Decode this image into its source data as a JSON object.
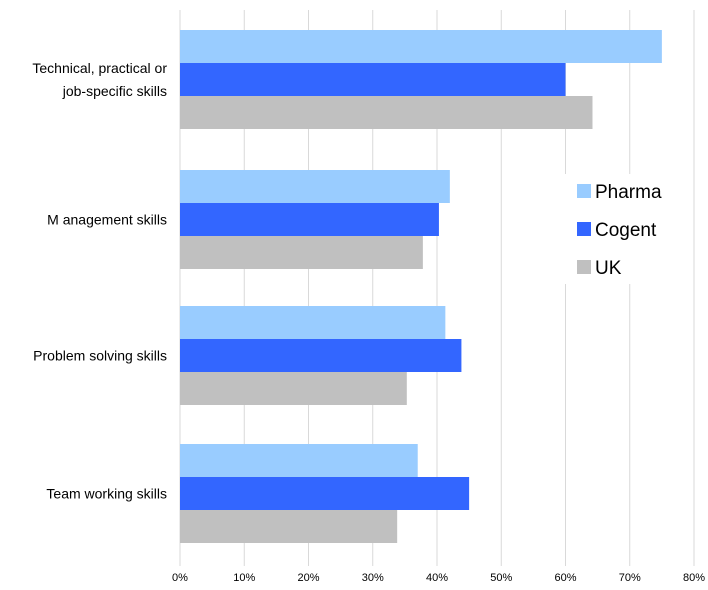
{
  "chart_data": {
    "type": "bar",
    "orientation": "horizontal",
    "categories": [
      [
        "Technical, practical or",
        "job-specific skills"
      ],
      [
        "M anagement skills"
      ],
      [
        "Problem solving skills"
      ],
      [
        "Team working skills"
      ]
    ],
    "series": [
      {
        "name": "Pharma",
        "color": "#99ccff",
        "values": [
          75,
          42,
          41.3,
          37
        ]
      },
      {
        "name": "Cogent",
        "color": "#3366ff",
        "values": [
          60,
          40.3,
          43.8,
          45
        ]
      },
      {
        "name": "UK",
        "color": "#c0c0c0",
        "values": [
          64.2,
          37.8,
          35.3,
          33.8
        ]
      }
    ],
    "xlim": [
      0,
      80
    ],
    "x_ticks": [
      "0%",
      "10%",
      "20%",
      "30%",
      "40%",
      "50%",
      "60%",
      "70%",
      "80%"
    ],
    "grid": "vertical",
    "legend_position": "right"
  }
}
